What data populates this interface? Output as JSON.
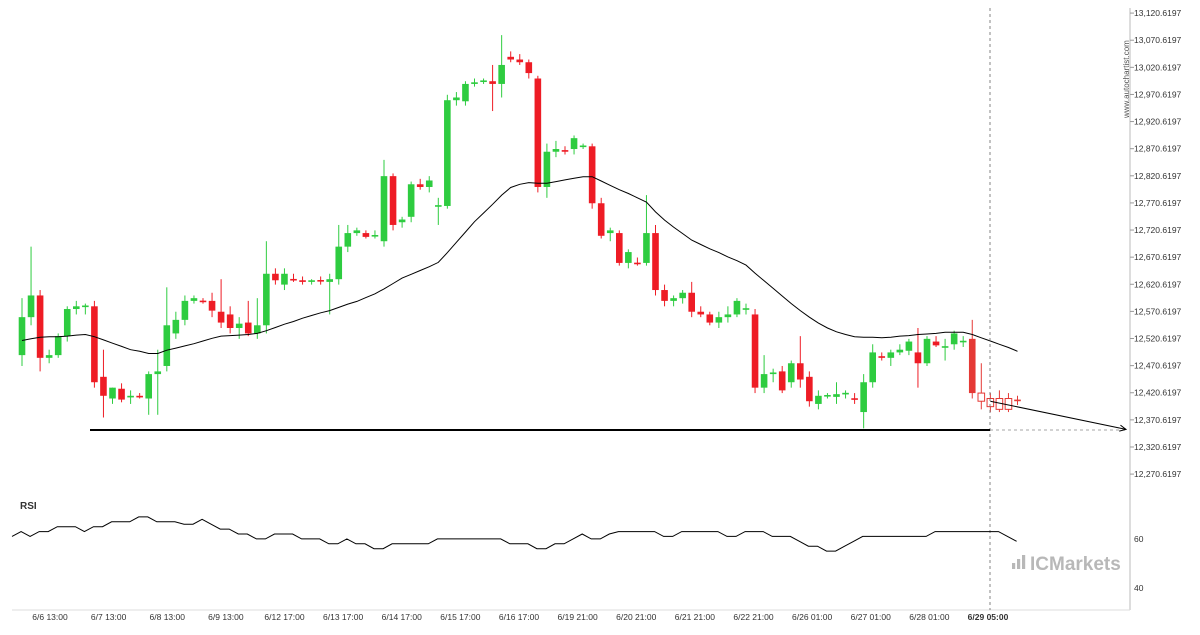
{
  "chart_data": {
    "type": "candlestick",
    "price_axis": {
      "ticks": [
        "13,120.6197",
        "13,070.6197",
        "13,020.6197",
        "12,970.6197",
        "12,920.6197",
        "12,870.6197",
        "12,820.6197",
        "12,770.6197",
        "12,720.6197",
        "12,670.6197",
        "12,620.6197",
        "12,570.6197",
        "12,520.6197",
        "12,470.6197",
        "12,420.6197",
        "12,370.6197",
        "12,320.6197",
        "12,270.6197"
      ],
      "range": [
        12245,
        13130
      ]
    },
    "time_axis": {
      "labels": [
        "6/6 13:00",
        "6/7 13:00",
        "6/8 13:00",
        "6/9 13:00",
        "6/12 17:00",
        "6/13 17:00",
        "6/14 17:00",
        "6/15 17:00",
        "6/16 17:00",
        "6/19 21:00",
        "6/20 21:00",
        "6/21 21:00",
        "6/22 21:00",
        "6/26 01:00",
        "6/27 01:00",
        "6/28 01:00",
        "6/29 05:00"
      ],
      "highlight": "6/29 05:00"
    },
    "candles": [
      {
        "o": 12490,
        "h": 12595,
        "l": 12470,
        "c": 12560
      },
      {
        "o": 12560,
        "h": 12690,
        "l": 12545,
        "c": 12600
      },
      {
        "o": 12600,
        "h": 12610,
        "l": 12460,
        "c": 12485
      },
      {
        "o": 12485,
        "h": 12500,
        "l": 12475,
        "c": 12490
      },
      {
        "o": 12490,
        "h": 12530,
        "l": 12485,
        "c": 12525
      },
      {
        "o": 12525,
        "h": 12580,
        "l": 12515,
        "c": 12575
      },
      {
        "o": 12575,
        "h": 12590,
        "l": 12565,
        "c": 12580
      },
      {
        "o": 12580,
        "h": 12585,
        "l": 12565,
        "c": 12580
      },
      {
        "o": 12580,
        "h": 12590,
        "l": 12430,
        "c": 12440
      },
      {
        "o": 12450,
        "h": 12500,
        "l": 12375,
        "c": 12415
      },
      {
        "o": 12410,
        "h": 12430,
        "l": 12400,
        "c": 12430
      },
      {
        "o": 12428,
        "h": 12438,
        "l": 12403,
        "c": 12408
      },
      {
        "o": 12412,
        "h": 12425,
        "l": 12400,
        "c": 12415
      },
      {
        "o": 12415,
        "h": 12420,
        "l": 12410,
        "c": 12412
      },
      {
        "o": 12410,
        "h": 12460,
        "l": 12380,
        "c": 12455
      },
      {
        "o": 12455,
        "h": 12500,
        "l": 12380,
        "c": 12460
      },
      {
        "o": 12470,
        "h": 12615,
        "l": 12460,
        "c": 12545
      },
      {
        "o": 12530,
        "h": 12570,
        "l": 12520,
        "c": 12555
      },
      {
        "o": 12555,
        "h": 12600,
        "l": 12545,
        "c": 12590
      },
      {
        "o": 12590,
        "h": 12600,
        "l": 12585,
        "c": 12595
      },
      {
        "o": 12590,
        "h": 12595,
        "l": 12585,
        "c": 12588
      },
      {
        "o": 12590,
        "h": 12605,
        "l": 12560,
        "c": 12572
      },
      {
        "o": 12570,
        "h": 12630,
        "l": 12540,
        "c": 12550
      },
      {
        "o": 12565,
        "h": 12580,
        "l": 12530,
        "c": 12540
      },
      {
        "o": 12540,
        "h": 12560,
        "l": 12520,
        "c": 12548
      },
      {
        "o": 12550,
        "h": 12590,
        "l": 12525,
        "c": 12530
      },
      {
        "o": 12530,
        "h": 12595,
        "l": 12520,
        "c": 12545
      },
      {
        "o": 12545,
        "h": 12700,
        "l": 12530,
        "c": 12640
      },
      {
        "o": 12640,
        "h": 12650,
        "l": 12620,
        "c": 12628
      },
      {
        "o": 12620,
        "h": 12650,
        "l": 12610,
        "c": 12640
      },
      {
        "o": 12630,
        "h": 12640,
        "l": 12625,
        "c": 12628
      },
      {
        "o": 12628,
        "h": 12635,
        "l": 12620,
        "c": 12625
      },
      {
        "o": 12625,
        "h": 12630,
        "l": 12620,
        "c": 12628
      },
      {
        "o": 12628,
        "h": 12635,
        "l": 12620,
        "c": 12626
      },
      {
        "o": 12625,
        "h": 12640,
        "l": 12565,
        "c": 12630
      },
      {
        "o": 12630,
        "h": 12730,
        "l": 12620,
        "c": 12690
      },
      {
        "o": 12690,
        "h": 12730,
        "l": 12680,
        "c": 12715
      },
      {
        "o": 12715,
        "h": 12725,
        "l": 12710,
        "c": 12720
      },
      {
        "o": 12715,
        "h": 12720,
        "l": 12705,
        "c": 12708
      },
      {
        "o": 12710,
        "h": 12720,
        "l": 12705,
        "c": 12710
      },
      {
        "o": 12700,
        "h": 12850,
        "l": 12690,
        "c": 12820
      },
      {
        "o": 12820,
        "h": 12825,
        "l": 12720,
        "c": 12730
      },
      {
        "o": 12735,
        "h": 12745,
        "l": 12725,
        "c": 12740
      },
      {
        "o": 12745,
        "h": 12810,
        "l": 12735,
        "c": 12805
      },
      {
        "o": 12805,
        "h": 12815,
        "l": 12795,
        "c": 12800
      },
      {
        "o": 12800,
        "h": 12820,
        "l": 12790,
        "c": 12812
      },
      {
        "o": 12765,
        "h": 12780,
        "l": 12730,
        "c": 12765
      },
      {
        "o": 12765,
        "h": 12970,
        "l": 12760,
        "c": 12960
      },
      {
        "o": 12960,
        "h": 12975,
        "l": 12950,
        "c": 12965
      },
      {
        "o": 12958,
        "h": 12995,
        "l": 12950,
        "c": 12990
      },
      {
        "o": 12990,
        "h": 13000,
        "l": 12985,
        "c": 12993
      },
      {
        "o": 12995,
        "h": 13000,
        "l": 12990,
        "c": 12995
      },
      {
        "o": 12995,
        "h": 13025,
        "l": 12940,
        "c": 12990
      },
      {
        "o": 12990,
        "h": 13080,
        "l": 12965,
        "c": 13025
      },
      {
        "o": 13040,
        "h": 13050,
        "l": 13030,
        "c": 13035
      },
      {
        "o": 13035,
        "h": 13045,
        "l": 13025,
        "c": 13030
      },
      {
        "o": 13030,
        "h": 13035,
        "l": 13000,
        "c": 13010
      },
      {
        "o": 13000,
        "h": 13005,
        "l": 12790,
        "c": 12800
      },
      {
        "o": 12800,
        "h": 12880,
        "l": 12780,
        "c": 12865
      },
      {
        "o": 12865,
        "h": 12885,
        "l": 12855,
        "c": 12870
      },
      {
        "o": 12868,
        "h": 12875,
        "l": 12860,
        "c": 12865
      },
      {
        "o": 12870,
        "h": 12895,
        "l": 12860,
        "c": 12890
      },
      {
        "o": 12875,
        "h": 12880,
        "l": 12870,
        "c": 12875
      },
      {
        "o": 12875,
        "h": 12880,
        "l": 12760,
        "c": 12770
      },
      {
        "o": 12770,
        "h": 12780,
        "l": 12705,
        "c": 12710
      },
      {
        "o": 12715,
        "h": 12725,
        "l": 12700,
        "c": 12720
      },
      {
        "o": 12715,
        "h": 12720,
        "l": 12655,
        "c": 12660
      },
      {
        "o": 12660,
        "h": 12685,
        "l": 12650,
        "c": 12680
      },
      {
        "o": 12660,
        "h": 12670,
        "l": 12655,
        "c": 12658
      },
      {
        "o": 12660,
        "h": 12785,
        "l": 12655,
        "c": 12715
      },
      {
        "o": 12715,
        "h": 12730,
        "l": 12600,
        "c": 12610
      },
      {
        "o": 12610,
        "h": 12620,
        "l": 12580,
        "c": 12590
      },
      {
        "o": 12590,
        "h": 12600,
        "l": 12580,
        "c": 12595
      },
      {
        "o": 12595,
        "h": 12610,
        "l": 12585,
        "c": 12605
      },
      {
        "o": 12605,
        "h": 12625,
        "l": 12560,
        "c": 12570
      },
      {
        "o": 12570,
        "h": 12580,
        "l": 12560,
        "c": 12565
      },
      {
        "o": 12565,
        "h": 12570,
        "l": 12545,
        "c": 12550
      },
      {
        "o": 12550,
        "h": 12570,
        "l": 12540,
        "c": 12560
      },
      {
        "o": 12560,
        "h": 12580,
        "l": 12550,
        "c": 12565
      },
      {
        "o": 12565,
        "h": 12595,
        "l": 12560,
        "c": 12590
      },
      {
        "o": 12575,
        "h": 12585,
        "l": 12565,
        "c": 12575
      },
      {
        "o": 12565,
        "h": 12575,
        "l": 12420,
        "c": 12430
      },
      {
        "o": 12430,
        "h": 12490,
        "l": 12420,
        "c": 12455
      },
      {
        "o": 12455,
        "h": 12465,
        "l": 12440,
        "c": 12458
      },
      {
        "o": 12460,
        "h": 12470,
        "l": 12420,
        "c": 12425
      },
      {
        "o": 12440,
        "h": 12480,
        "l": 12430,
        "c": 12475
      },
      {
        "o": 12475,
        "h": 12525,
        "l": 12430,
        "c": 12445
      },
      {
        "o": 12450,
        "h": 12460,
        "l": 12395,
        "c": 12405
      },
      {
        "o": 12400,
        "h": 12425,
        "l": 12390,
        "c": 12415
      },
      {
        "o": 12415,
        "h": 12420,
        "l": 12410,
        "c": 12415
      },
      {
        "o": 12413,
        "h": 12440,
        "l": 12400,
        "c": 12418
      },
      {
        "o": 12418,
        "h": 12425,
        "l": 12410,
        "c": 12420
      },
      {
        "o": 12410,
        "h": 12420,
        "l": 12400,
        "c": 12408
      },
      {
        "o": 12385,
        "h": 12455,
        "l": 12355,
        "c": 12440
      },
      {
        "o": 12440,
        "h": 12510,
        "l": 12430,
        "c": 12495
      },
      {
        "o": 12488,
        "h": 12495,
        "l": 12480,
        "c": 12485
      },
      {
        "o": 12485,
        "h": 12500,
        "l": 12470,
        "c": 12495
      },
      {
        "o": 12495,
        "h": 12510,
        "l": 12490,
        "c": 12500
      },
      {
        "o": 12498,
        "h": 12520,
        "l": 12490,
        "c": 12515
      },
      {
        "o": 12495,
        "h": 12540,
        "l": 12430,
        "c": 12475
      },
      {
        "o": 12475,
        "h": 12525,
        "l": 12470,
        "c": 12520
      },
      {
        "o": 12515,
        "h": 12525,
        "l": 12505,
        "c": 12508
      },
      {
        "o": 12505,
        "h": 12520,
        "l": 12480,
        "c": 12505
      },
      {
        "o": 12510,
        "h": 12535,
        "l": 12500,
        "c": 12530
      },
      {
        "o": 12515,
        "h": 12525,
        "l": 12505,
        "c": 12515
      },
      {
        "o": 12520,
        "h": 12555,
        "l": 12410,
        "c": 12420
      },
      {
        "o": 12420,
        "h": 12475,
        "l": 12390,
        "c": 12405
      },
      {
        "o": 12395,
        "h": 12420,
        "l": 12385,
        "c": 12410
      },
      {
        "o": 12410,
        "h": 12425,
        "l": 12385,
        "c": 12390
      },
      {
        "o": 12390,
        "h": 12420,
        "l": 12385,
        "c": 12410
      },
      {
        "o": 12405,
        "h": 12415,
        "l": 12398,
        "c": 12408
      }
    ],
    "moving_average": [
      12517,
      12520,
      12523,
      12524,
      12524,
      12525,
      12527,
      12528,
      12524,
      12518,
      12512,
      12506,
      12500,
      12497,
      12493,
      12493,
      12499,
      12503,
      12507,
      12511,
      12516,
      12521,
      12525,
      12526,
      12527,
      12528,
      12530,
      12535,
      12541,
      12547,
      12552,
      12558,
      12563,
      12568,
      12572,
      12578,
      12584,
      12589,
      12596,
      12603,
      12612,
      12622,
      12632,
      12639,
      12646,
      12653,
      12661,
      12679,
      12698,
      12717,
      12736,
      12752,
      12768,
      12785,
      12799,
      12805,
      12808,
      12807,
      12807,
      12810,
      12813,
      12816,
      12819,
      12819,
      12811,
      12803,
      12795,
      12788,
      12780,
      12772,
      12754,
      12739,
      12726,
      12714,
      12702,
      12694,
      12686,
      12679,
      12671,
      12664,
      12656,
      12641,
      12627,
      12613,
      12599,
      12585,
      12572,
      12560,
      12549,
      12540,
      12533,
      12528,
      12524,
      12523,
      12523,
      12522,
      12523,
      12525,
      12526,
      12528,
      12529,
      12530,
      12532,
      12532,
      12532,
      12528,
      12522,
      12516,
      12510,
      12504,
      12497
    ],
    "support_level": 12352,
    "projection": {
      "start_index": 107,
      "start_value": 12405,
      "end_value": 12353
    },
    "rsi": {
      "label": "RSI",
      "ticks": [
        "60",
        "40"
      ],
      "range": [
        35,
        80
      ],
      "values": [
        61,
        63,
        61,
        63,
        63,
        65,
        65,
        65,
        63,
        65,
        65,
        67,
        67,
        67,
        69,
        69,
        67,
        67,
        67,
        66,
        66,
        68,
        66,
        64,
        64,
        62,
        62,
        60,
        60,
        62,
        62,
        62,
        60,
        60,
        60,
        58,
        58,
        60,
        58,
        58,
        56,
        56,
        58,
        58,
        58,
        58,
        58,
        60,
        60,
        60,
        60,
        60,
        60,
        60,
        60,
        58,
        58,
        58,
        56,
        56,
        58,
        58,
        60,
        62,
        60,
        60,
        62,
        63,
        63,
        63,
        63,
        63,
        61,
        61,
        63,
        63,
        63,
        63,
        63,
        61,
        61,
        63,
        63,
        63,
        61,
        61,
        61,
        59,
        57,
        57,
        55,
        55,
        57,
        59,
        61,
        61,
        61,
        61,
        61,
        61,
        61,
        61,
        63,
        63,
        63,
        63,
        63,
        63,
        63,
        63,
        61,
        59
      ]
    },
    "watermark_vertical": "www.autochartist.com",
    "watermark_brand": "ICMarkets",
    "colors": {
      "bull": "#2ecc40",
      "bear": "#ee1c25",
      "line": "#000000",
      "axis": "#999999",
      "label": "#333333",
      "brand": "#b8b8b8",
      "pattern_candle": "#e53935"
    }
  }
}
